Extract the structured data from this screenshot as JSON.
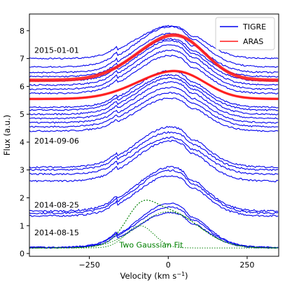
{
  "chart_data": {
    "type": "line",
    "xlabel": "Velocity (km s",
    "xlabel_sup": "−1",
    "xlabel_close": ")",
    "ylabel": "Flux (a.u.)",
    "xlim": [
      -440,
      350
    ],
    "ylim": [
      -0.1,
      8.6
    ],
    "xticks": [
      -250,
      0,
      250
    ],
    "xtick_labels": [
      "−250",
      "0",
      "250"
    ],
    "yticks": [
      0,
      1,
      2,
      3,
      4,
      5,
      6,
      7,
      8
    ],
    "ytick_labels": [
      "0",
      "1",
      "2",
      "3",
      "4",
      "5",
      "6",
      "7",
      "8"
    ],
    "grid": false,
    "legend_position": "top-right",
    "colors": {
      "tigre": "#0000ee",
      "aras": "#ff1a1a",
      "fit": "#008000"
    },
    "legend": [
      {
        "name": "TIGRE",
        "color": "#0000ee"
      },
      {
        "name": "ARAS",
        "color": "#ff1a1a"
      }
    ],
    "date_labels": [
      {
        "text": "2015-01-01",
        "x": -440,
        "y": 7.2
      },
      {
        "text": "2014-09-06",
        "x": -440,
        "y": 3.95
      },
      {
        "text": "2014-08-25",
        "x": -440,
        "y": 1.65
      },
      {
        "text": "2014-08-15",
        "x": -440,
        "y": 0.65
      }
    ],
    "fit_label": {
      "text": "Two Gaussian Fit",
      "x": -155,
      "y": 0.22
    },
    "tigre_series": [
      {
        "base": 0.2,
        "amp": 1.4,
        "noise": 0.02
      },
      {
        "base": 0.22,
        "amp": 1.6,
        "noise": 0.02
      },
      {
        "base": 0.22,
        "amp": 1.75,
        "noise": 0.025
      },
      {
        "base": 1.35,
        "amp": 1.6,
        "noise": 0.03
      },
      {
        "base": 1.45,
        "amp": 1.7,
        "noise": 0.03
      },
      {
        "base": 1.52,
        "amp": 1.75,
        "noise": 0.035
      },
      {
        "base": 2.6,
        "amp": 1.6,
        "noise": 0.03
      },
      {
        "base": 2.85,
        "amp": 1.45,
        "noise": 0.03
      },
      {
        "base": 3.0,
        "amp": 1.5,
        "noise": 0.03
      },
      {
        "base": 3.1,
        "amp": 1.6,
        "noise": 0.03
      },
      {
        "base": 4.4,
        "amp": 1.3,
        "noise": 0.025
      },
      {
        "base": 4.55,
        "amp": 1.35,
        "noise": 0.025
      },
      {
        "base": 4.7,
        "amp": 1.4,
        "noise": 0.025
      },
      {
        "base": 4.85,
        "amp": 1.45,
        "noise": 0.025
      },
      {
        "base": 5.0,
        "amp": 1.45,
        "noise": 0.025
      },
      {
        "base": 5.15,
        "amp": 1.4,
        "noise": 0.025
      },
      {
        "base": 5.25,
        "amp": 1.45,
        "noise": 0.025
      },
      {
        "base": 5.75,
        "amp": 1.5,
        "noise": 0.025
      },
      {
        "base": 5.9,
        "amp": 1.55,
        "noise": 0.025
      },
      {
        "base": 6.05,
        "amp": 1.6,
        "noise": 0.025
      },
      {
        "base": 6.2,
        "amp": 1.6,
        "noise": 0.025
      },
      {
        "base": 6.35,
        "amp": 1.5,
        "noise": 0.025
      },
      {
        "base": 6.5,
        "amp": 1.55,
        "noise": 0.025
      },
      {
        "base": 6.7,
        "amp": 1.6,
        "noise": 0.025
      },
      {
        "base": 7.0,
        "amp": 1.3,
        "noise": 0.025
      }
    ],
    "aras_series": [
      {
        "base": 5.55,
        "amp": 1.05,
        "spread": 0.06
      },
      {
        "base": 6.22,
        "amp": 1.7,
        "spread": 0.1
      }
    ],
    "fit": {
      "baseline": 0.2,
      "gauss1": {
        "center": -90,
        "sigma": 45,
        "amp": 0.8
      },
      "gauss2": {
        "center": 0,
        "sigma": 95,
        "amp": 1.3
      }
    }
  }
}
